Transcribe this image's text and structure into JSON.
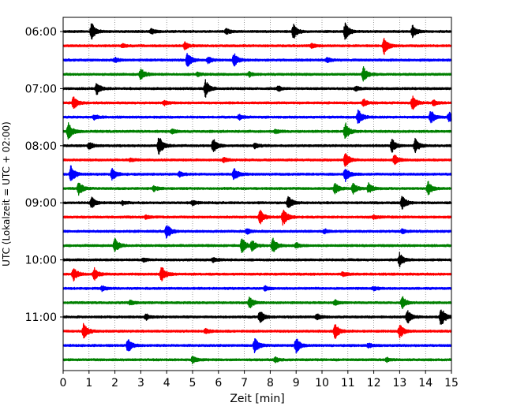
{
  "chart_data": {
    "type": "line",
    "title": "",
    "xlabel": "Zeit  [min]",
    "ylabel": "UTC (Lokalzeit = UTC + 02:00)",
    "xlim": [
      0,
      15
    ],
    "x_ticks": [
      "0",
      "1",
      "2",
      "3",
      "4",
      "5",
      "6",
      "7",
      "8",
      "9",
      "10",
      "11",
      "12",
      "13",
      "14",
      "15"
    ],
    "y_ticks": [
      {
        "label": "06:00",
        "trace": 0
      },
      {
        "label": "07:00",
        "trace": 4
      },
      {
        "label": "08:00",
        "trace": 8
      },
      {
        "label": "09:00",
        "trace": 12
      },
      {
        "label": "10:00",
        "trace": 16
      },
      {
        "label": "11:00",
        "trace": 20
      }
    ],
    "grid": {
      "x": true,
      "style": "dotted"
    },
    "trace_interval_min": 15,
    "colors": [
      "#000000",
      "#ff0000",
      "#0000ff",
      "#008000"
    ],
    "series": [
      {
        "start": "06:00",
        "color": "#000000",
        "events": [
          [
            1.1,
            1.0
          ],
          [
            8.9,
            0.9
          ],
          [
            10.9,
            1.0
          ],
          [
            13.5,
            0.7
          ],
          [
            3.4,
            0.3
          ],
          [
            6.3,
            0.3
          ]
        ]
      },
      {
        "start": "06:15",
        "color": "#ff0000",
        "events": [
          [
            4.7,
            0.4
          ],
          [
            12.4,
            1.0
          ],
          [
            9.6,
            0.25
          ],
          [
            2.3,
            0.2
          ]
        ]
      },
      {
        "start": "06:30",
        "color": "#0000ff",
        "events": [
          [
            4.8,
            0.9
          ],
          [
            6.6,
            0.8
          ],
          [
            5.6,
            0.35
          ],
          [
            2.0,
            0.25
          ],
          [
            10.2,
            0.25
          ]
        ]
      },
      {
        "start": "06:45",
        "color": "#008000",
        "events": [
          [
            3.0,
            0.7
          ],
          [
            11.6,
            0.8
          ],
          [
            7.2,
            0.25
          ],
          [
            5.2,
            0.2
          ]
        ]
      },
      {
        "start": "07:00",
        "color": "#000000",
        "events": [
          [
            1.3,
            0.7
          ],
          [
            5.5,
            1.0
          ],
          [
            8.3,
            0.3
          ],
          [
            11.3,
            0.25
          ]
        ]
      },
      {
        "start": "07:15",
        "color": "#ff0000",
        "events": [
          [
            0.4,
            0.7
          ],
          [
            11.6,
            0.4
          ],
          [
            13.5,
            0.8
          ],
          [
            3.9,
            0.25
          ],
          [
            14.3,
            0.3
          ]
        ]
      },
      {
        "start": "07:30",
        "color": "#0000ff",
        "events": [
          [
            11.4,
            0.9
          ],
          [
            14.2,
            0.8
          ],
          [
            14.9,
            0.6
          ],
          [
            1.2,
            0.25
          ],
          [
            6.8,
            0.25
          ]
        ]
      },
      {
        "start": "07:45",
        "color": "#008000",
        "events": [
          [
            0.2,
            1.0
          ],
          [
            10.9,
            1.0
          ],
          [
            4.2,
            0.25
          ],
          [
            8.2,
            0.25
          ]
        ]
      },
      {
        "start": "08:00",
        "color": "#000000",
        "events": [
          [
            3.7,
            1.1
          ],
          [
            5.8,
            0.8
          ],
          [
            12.7,
            0.8
          ],
          [
            13.6,
            0.8
          ],
          [
            1.0,
            0.4
          ],
          [
            7.4,
            0.3
          ]
        ]
      },
      {
        "start": "08:15",
        "color": "#ff0000",
        "events": [
          [
            10.9,
            0.8
          ],
          [
            12.8,
            0.6
          ],
          [
            6.2,
            0.25
          ],
          [
            2.6,
            0.2
          ]
        ]
      },
      {
        "start": "08:30",
        "color": "#0000ff",
        "events": [
          [
            0.3,
            1.0
          ],
          [
            1.9,
            0.7
          ],
          [
            6.6,
            0.7
          ],
          [
            10.9,
            0.8
          ],
          [
            4.5,
            0.3
          ]
        ]
      },
      {
        "start": "08:45",
        "color": "#008000",
        "events": [
          [
            0.6,
            0.8
          ],
          [
            10.5,
            0.6
          ],
          [
            11.2,
            0.6
          ],
          [
            11.8,
            0.6
          ],
          [
            14.1,
            0.8
          ],
          [
            3.5,
            0.3
          ]
        ]
      },
      {
        "start": "09:00",
        "color": "#000000",
        "events": [
          [
            1.1,
            0.6
          ],
          [
            8.7,
            0.8
          ],
          [
            13.1,
            0.8
          ],
          [
            5.0,
            0.25
          ],
          [
            2.3,
            0.2
          ]
        ]
      },
      {
        "start": "09:15",
        "color": "#ff0000",
        "events": [
          [
            7.6,
            0.9
          ],
          [
            8.5,
            1.0
          ],
          [
            3.2,
            0.2
          ],
          [
            12.0,
            0.2
          ]
        ]
      },
      {
        "start": "09:30",
        "color": "#0000ff",
        "events": [
          [
            4.0,
            0.9
          ],
          [
            7.1,
            0.3
          ],
          [
            10.1,
            0.25
          ],
          [
            13.1,
            0.25
          ]
        ]
      },
      {
        "start": "09:45",
        "color": "#008000",
        "events": [
          [
            2.0,
            0.8
          ],
          [
            6.9,
            0.9
          ],
          [
            8.1,
            0.9
          ],
          [
            7.3,
            0.6
          ],
          [
            9.0,
            0.3
          ]
        ]
      },
      {
        "start": "10:00",
        "color": "#000000",
        "events": [
          [
            13.0,
            0.8
          ],
          [
            5.8,
            0.25
          ],
          [
            3.1,
            0.2
          ]
        ]
      },
      {
        "start": "10:15",
        "color": "#ff0000",
        "events": [
          [
            0.4,
            0.8
          ],
          [
            1.2,
            0.7
          ],
          [
            3.8,
            1.0
          ],
          [
            10.8,
            0.25
          ]
        ]
      },
      {
        "start": "10:30",
        "color": "#0000ff",
        "events": [
          [
            1.5,
            0.25
          ],
          [
            7.8,
            0.25
          ],
          [
            12.0,
            0.2
          ]
        ]
      },
      {
        "start": "10:45",
        "color": "#008000",
        "events": [
          [
            7.2,
            0.7
          ],
          [
            13.1,
            0.7
          ],
          [
            2.6,
            0.25
          ],
          [
            10.5,
            0.3
          ]
        ]
      },
      {
        "start": "11:00",
        "color": "#000000",
        "events": [
          [
            7.6,
            0.8
          ],
          [
            13.3,
            0.8
          ],
          [
            14.6,
            1.2
          ],
          [
            3.2,
            0.3
          ],
          [
            9.8,
            0.3
          ]
        ]
      },
      {
        "start": "11:15",
        "color": "#ff0000",
        "events": [
          [
            0.8,
            1.0
          ],
          [
            10.5,
            0.9
          ],
          [
            13.0,
            0.8
          ],
          [
            5.5,
            0.3
          ]
        ]
      },
      {
        "start": "11:30",
        "color": "#0000ff",
        "events": [
          [
            2.5,
            0.8
          ],
          [
            7.4,
            0.9
          ],
          [
            9.0,
            0.9
          ],
          [
            11.8,
            0.25
          ]
        ]
      },
      {
        "start": "11:45",
        "color": "#008000",
        "events": [
          [
            5.0,
            0.4
          ],
          [
            8.2,
            0.25
          ],
          [
            12.5,
            0.2
          ]
        ]
      }
    ]
  }
}
